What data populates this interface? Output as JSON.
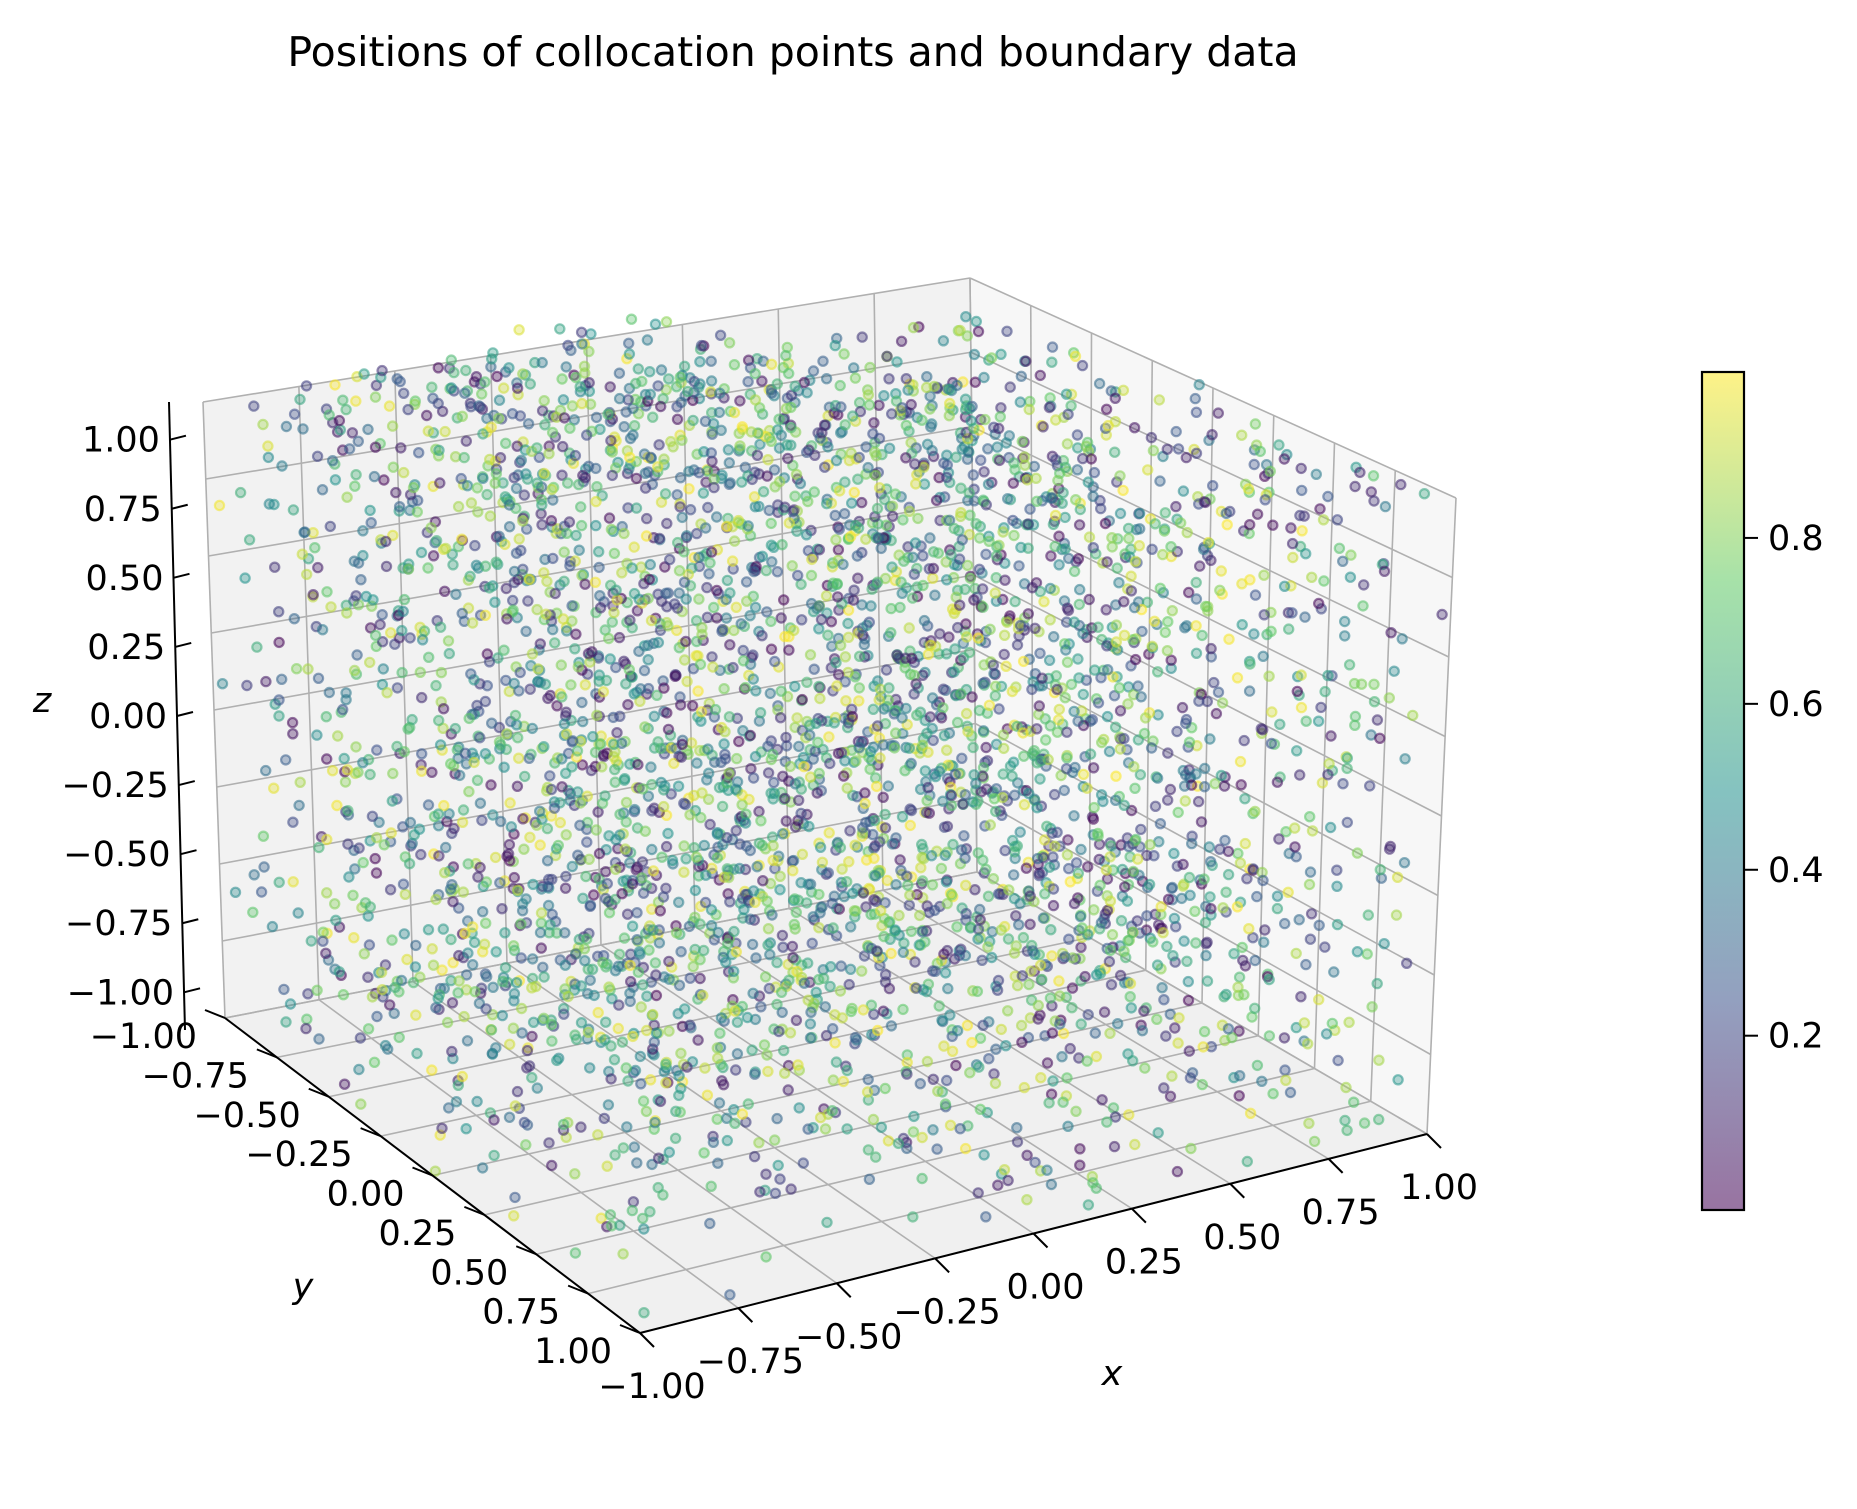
{
  "chart_data": {
    "type": "scatter",
    "projection": "3d",
    "title": "Positions of collocation points and boundary data",
    "xlabel": "x",
    "ylabel": "y",
    "zlabel": "z",
    "xlim": [
      -1.0,
      1.0
    ],
    "ylim": [
      -1.0,
      1.0
    ],
    "zlim": [
      -1.0,
      1.0
    ],
    "x_ticks": [
      "−1.00",
      "−0.75",
      "−0.50",
      "−0.25",
      "0.00",
      "0.25",
      "0.50",
      "0.75",
      "1.00"
    ],
    "y_ticks": [
      "−1.00",
      "−0.75",
      "−0.50",
      "−0.25",
      "0.00",
      "0.25",
      "0.50",
      "0.75",
      "1.00"
    ],
    "z_ticks": [
      "−1.00",
      "−0.75",
      "−0.50",
      "−0.25",
      "0.00",
      "0.25",
      "0.50",
      "0.75",
      "1.00"
    ],
    "grid": true,
    "colormap": "viridis",
    "marker_alpha": 0.55,
    "color_range": [
      0.0,
      1.0
    ],
    "colorbar_ticks": [
      "0.2",
      "0.4",
      "0.6",
      "0.8"
    ],
    "point_distribution": "uniform random points filling the cube [-1,1]^3, colors uniformly random in [0,1]",
    "colors": {
      "pane": "#f2f2f2",
      "grid": "#b0b0b0",
      "viridis": [
        "#440154",
        "#3b528b",
        "#21918c",
        "#5ec962",
        "#fde725"
      ]
    }
  }
}
